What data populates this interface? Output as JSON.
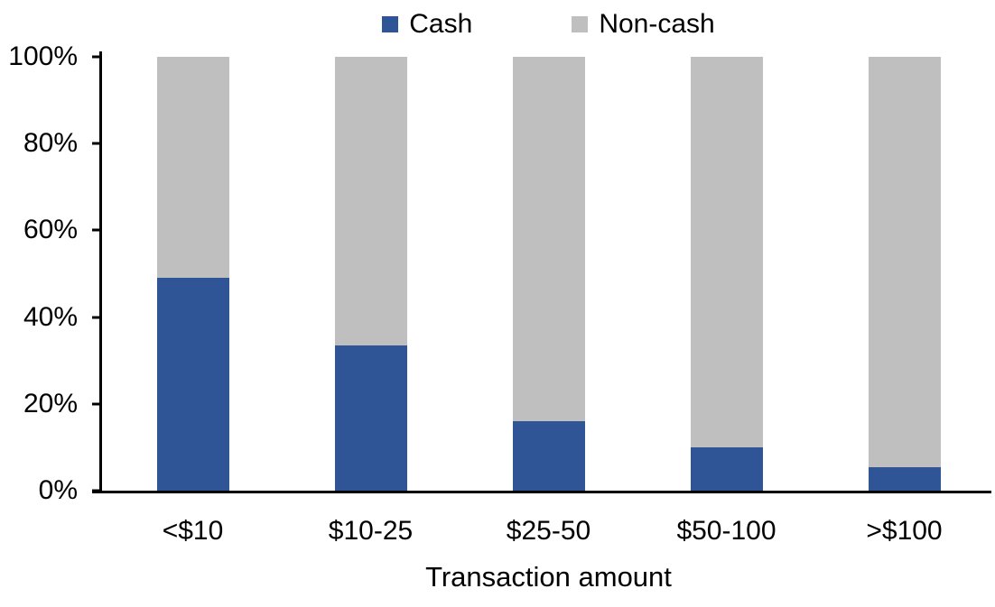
{
  "chart_data": {
    "type": "bar",
    "stacked": true,
    "title": "",
    "categories": [
      "<$10",
      "$10-25",
      "$25-50",
      "$50-100",
      ">$100"
    ],
    "series": [
      {
        "name": "Cash",
        "color": "#2F5597",
        "values": [
          49,
          33.5,
          16,
          10,
          5.5
        ]
      },
      {
        "name": "Non-cash",
        "color": "#BFBFBF",
        "values": [
          51,
          66.5,
          84,
          90,
          94.5
        ]
      }
    ],
    "xlabel": "Transaction amount",
    "ylabel": "",
    "ylim": [
      0,
      100
    ],
    "yticks": [
      {
        "value": 0,
        "label": "0%"
      },
      {
        "value": 20,
        "label": "20%"
      },
      {
        "value": 40,
        "label": "40%"
      },
      {
        "value": 60,
        "label": "60%"
      },
      {
        "value": 80,
        "label": "80%"
      },
      {
        "value": 100,
        "label": "100%"
      }
    ],
    "grid": false,
    "legend_position": "top-center",
    "axis_color": "#000000",
    "text_color": "#000000",
    "background": "#FFFFFF"
  }
}
